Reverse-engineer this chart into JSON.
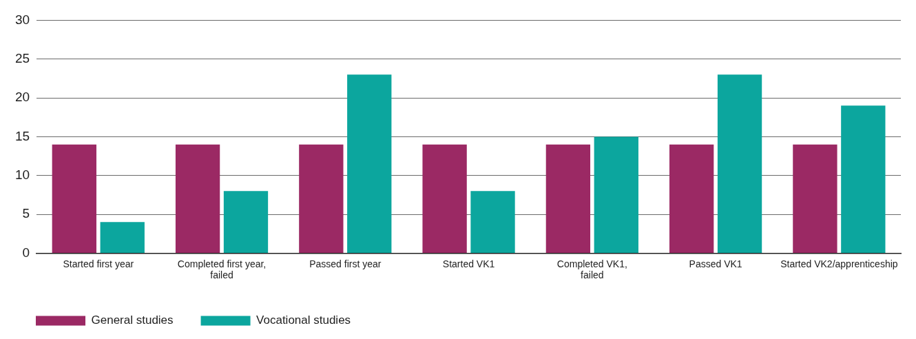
{
  "chart_data": {
    "type": "bar",
    "categories": [
      "Started first year",
      "Completed first year, failed",
      "Passed first year",
      "Started VK1",
      "Completed VK1, failed",
      "Passed VK1",
      "Started VK2/apprenticeship"
    ],
    "series": [
      {
        "name": "General studies",
        "color": "#9b2964",
        "values": [
          14,
          14,
          14,
          14,
          14,
          14,
          14
        ]
      },
      {
        "name": "Vocational studies",
        "color": "#0ca69e",
        "values": [
          4,
          8,
          23,
          8,
          15,
          23,
          19
        ]
      }
    ],
    "ylim": [
      0,
      30
    ],
    "yticks": [
      0,
      5,
      10,
      15,
      20,
      25,
      30
    ],
    "grid": "y",
    "legend": "bottom left"
  }
}
